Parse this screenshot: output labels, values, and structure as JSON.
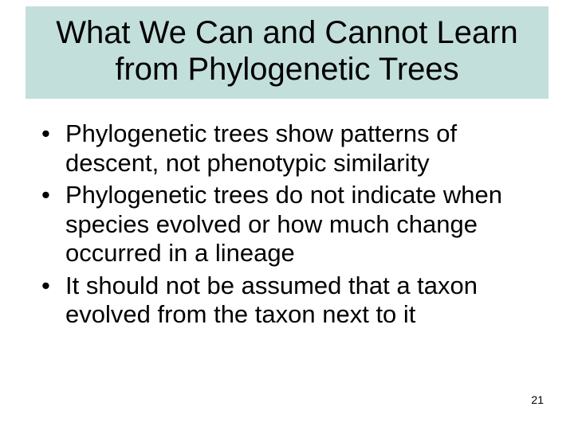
{
  "slide": {
    "title_box_bg": "#c3dfdb",
    "title": "What We Can and Cannot Learn from Phylogenetic Trees",
    "bullets": [
      "Phylogenetic trees show patterns of descent, not phenotypic similarity",
      "Phylogenetic trees do not indicate when species evolved or how much change occurred in a lineage",
      "It should not be assumed that a taxon evolved from the taxon next to it"
    ],
    "page_number": "21",
    "colors": {
      "background": "#ffffff",
      "text": "#000000"
    },
    "typography": {
      "title_fontsize": 40,
      "body_fontsize": 31,
      "pagenum_fontsize": 14,
      "font_family": "Arial"
    }
  }
}
